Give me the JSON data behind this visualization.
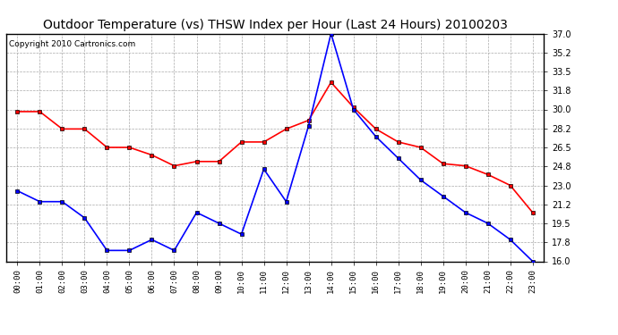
{
  "title": "Outdoor Temperature (vs) THSW Index per Hour (Last 24 Hours) 20100203",
  "copyright": "Copyright 2010 Cartronics.com",
  "hours": [
    "00:00",
    "01:00",
    "02:00",
    "03:00",
    "04:00",
    "05:00",
    "06:00",
    "07:00",
    "08:00",
    "09:00",
    "10:00",
    "11:00",
    "12:00",
    "13:00",
    "14:00",
    "15:00",
    "16:00",
    "17:00",
    "18:00",
    "19:00",
    "20:00",
    "21:00",
    "22:00",
    "23:00"
  ],
  "temp": [
    22.5,
    21.5,
    21.5,
    20.0,
    17.0,
    17.0,
    18.0,
    17.0,
    20.5,
    19.5,
    18.5,
    24.5,
    21.5,
    28.5,
    37.0,
    30.0,
    27.5,
    25.5,
    23.5,
    22.0,
    20.5,
    19.5,
    18.0,
    16.0
  ],
  "thsw": [
    29.8,
    29.8,
    28.2,
    28.2,
    26.5,
    26.5,
    25.8,
    24.8,
    25.2,
    25.2,
    27.0,
    27.0,
    28.2,
    29.0,
    32.5,
    30.2,
    28.2,
    27.0,
    26.5,
    25.0,
    24.8,
    24.0,
    23.0,
    20.5
  ],
  "ylim_min": 16.0,
  "ylim_max": 37.0,
  "yticks": [
    16.0,
    17.8,
    19.5,
    21.2,
    23.0,
    24.8,
    26.5,
    28.2,
    30.0,
    31.8,
    33.5,
    35.2,
    37.0
  ],
  "temp_color": "#0000ff",
  "thsw_color": "#ff0000",
  "bg_color": "#ffffff",
  "plot_bg_color": "#ffffff",
  "grid_color": "#aaaaaa",
  "title_fontsize": 10,
  "copyright_fontsize": 6.5,
  "marker": "s",
  "marker_size": 3,
  "line_width": 1.2
}
